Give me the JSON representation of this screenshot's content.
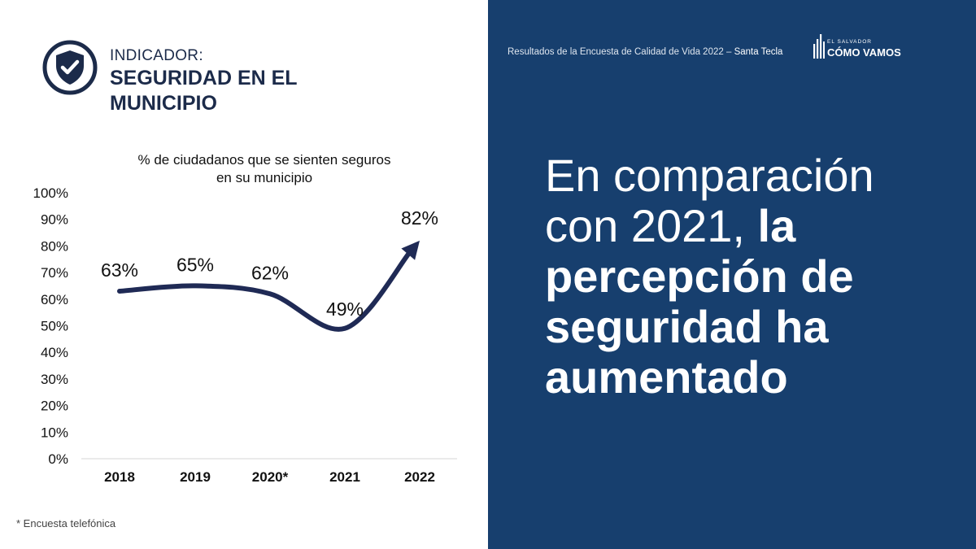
{
  "indicator": {
    "label": "INDICADOR:",
    "title": "SEGURIDAD EN EL MUNICIPIO"
  },
  "header": {
    "survey_text": "Resultados de la Encuesta de Calidad de Vida 2022 –",
    "location": "Santa Tecla"
  },
  "logo": {
    "small": "EL SALVADOR",
    "big": "CÓMO VAMOS"
  },
  "headline": {
    "normal": "En comparación con 2021,",
    "bold": "la percepción de seguridad ha aumentado"
  },
  "footnote": "* Encuesta telefónica",
  "colors": {
    "right_panel": "#173f6e",
    "line": "#1f2a55",
    "text_dark": "#1c2b4a"
  },
  "icons": {
    "indicator": "shield-check-icon",
    "logo": "bars-logo-icon",
    "line_end": "arrow-head-icon"
  },
  "chart_data": {
    "type": "line",
    "title": "% de ciudadanos que se sienten seguros en su municipio",
    "categories": [
      "2018",
      "2019",
      "2020*",
      "2021",
      "2022"
    ],
    "values": [
      63,
      65,
      62,
      49,
      82
    ],
    "value_labels": [
      "63%",
      "65%",
      "62%",
      "49%",
      "82%"
    ],
    "ylim": [
      0,
      100
    ],
    "yticks": [
      "0%",
      "10%",
      "20%",
      "30%",
      "40%",
      "50%",
      "60%",
      "70%",
      "80%",
      "90%",
      "100%"
    ],
    "grid": false,
    "legend": "none"
  }
}
